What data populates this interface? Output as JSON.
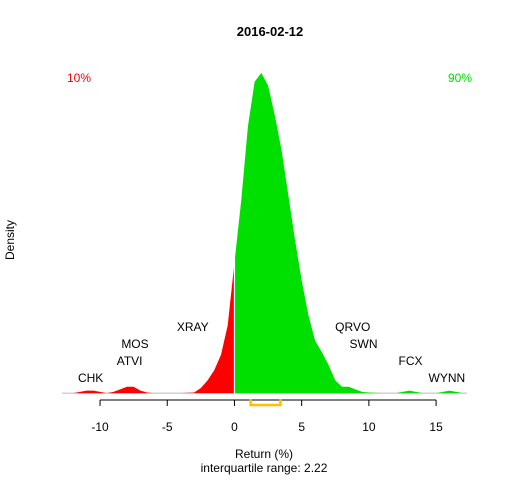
{
  "chart_data": {
    "type": "density",
    "title": "2016-02-12",
    "y_label": "Density",
    "x_label": "Return (%)",
    "subtitle": "interquartile range: 2.22",
    "left_label": "10%",
    "right_label": "90%",
    "color_below": "#ff0000",
    "color_above": "#00e000",
    "split": 0,
    "x": [
      -12,
      -11.5,
      -11,
      -10.5,
      -10,
      -9.5,
      -9,
      -8.5,
      -8,
      -7.5,
      -7,
      -6.5,
      -6,
      -5,
      -4,
      -3,
      -2.5,
      -2,
      -1.5,
      -1,
      -0.5,
      0,
      0.5,
      1,
      1.5,
      2,
      2.5,
      3,
      3.5,
      4,
      4.5,
      5,
      5.5,
      6,
      6.5,
      7,
      7.5,
      8,
      8.5,
      9,
      9.5,
      10,
      11,
      12,
      12.5,
      13,
      13.5,
      14,
      15,
      15.5,
      16,
      16.5,
      17
    ],
    "values": [
      0,
      0.001,
      0.002,
      0.002,
      0.001,
      0,
      0.001,
      0.003,
      0.005,
      0.005,
      0.002,
      0.0005,
      0,
      0,
      0,
      0.0005,
      0.004,
      0.01,
      0.018,
      0.03,
      0.053,
      0.102,
      0.15,
      0.208,
      0.243,
      0.25,
      0.24,
      0.217,
      0.19,
      0.155,
      0.12,
      0.088,
      0.061,
      0.041,
      0.032,
      0.022,
      0.01,
      0.005,
      0.005,
      0.003,
      0.001,
      0.0005,
      0,
      0,
      0.001,
      0.002,
      0.001,
      0,
      0,
      0.001,
      0.002,
      0.001,
      0
    ],
    "labels": [
      {
        "text": "CHK",
        "x": -10.7
      },
      {
        "text": "ATVI",
        "x": -7.8
      },
      {
        "text": "MOS",
        "x": -7.4
      },
      {
        "text": "XRAY",
        "x": -3.1
      },
      {
        "text": "QRVO",
        "x": 8.8
      },
      {
        "text": "SWN",
        "x": 9.6
      },
      {
        "text": "FCX",
        "x": 13.1
      },
      {
        "text": "WYNN",
        "x": 15.8
      }
    ],
    "quartiles": [
      1.2,
      3.42
    ],
    "quartile_color": "#ffc000",
    "xlim": [
      -12.83,
      17.3
    ],
    "ylim": [
      -0.01,
      0.26
    ],
    "xticks": [
      -10,
      -5,
      0,
      5,
      10,
      15
    ]
  }
}
